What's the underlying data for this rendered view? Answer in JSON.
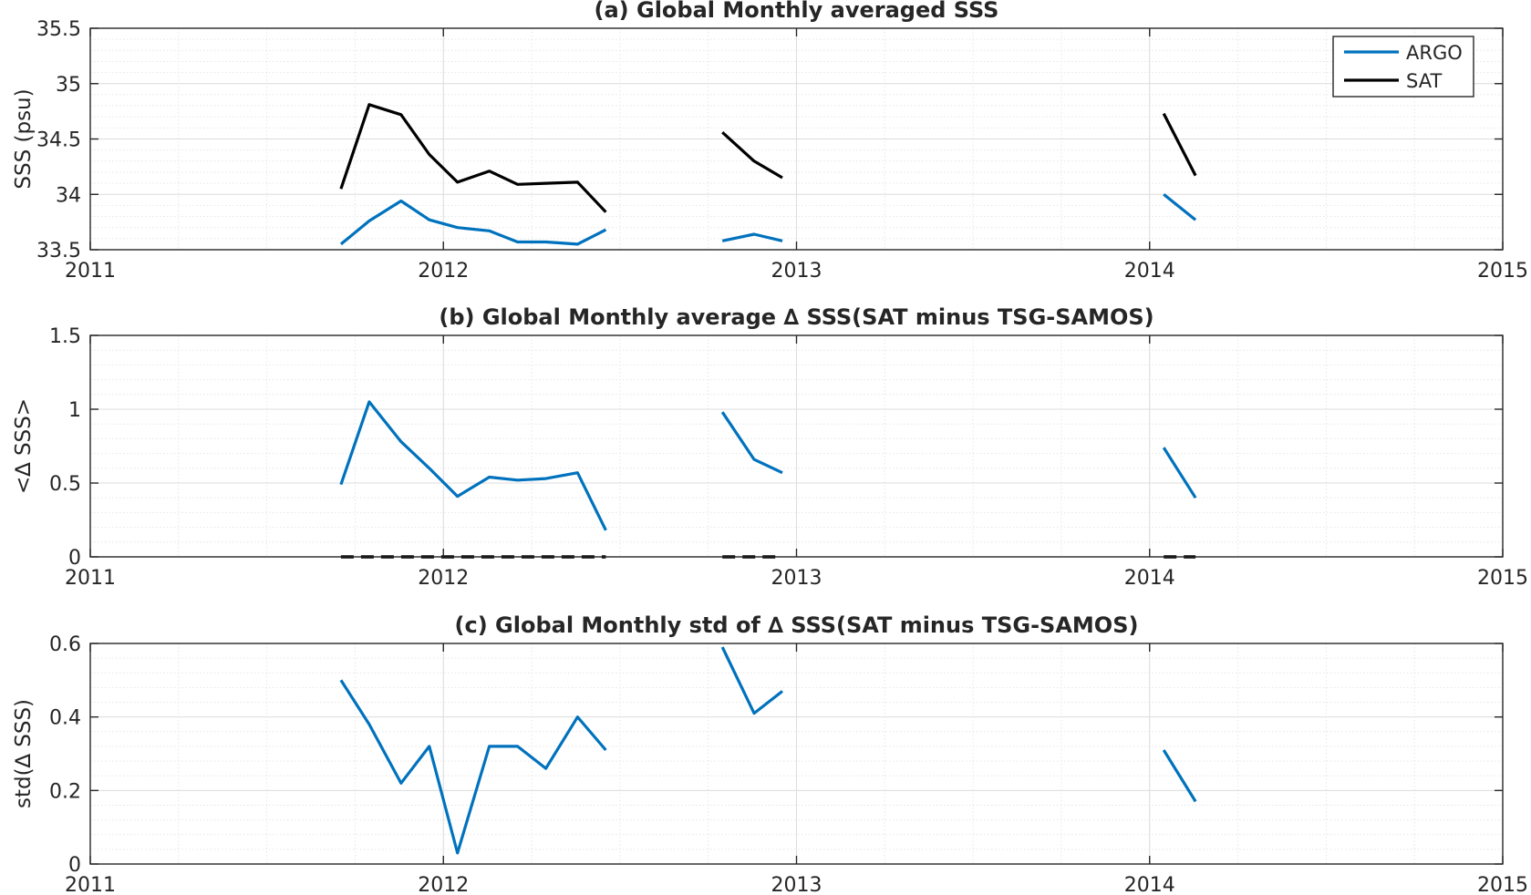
{
  "colors": {
    "argo": "#0072BD",
    "sat": "#000000",
    "grid_major": "#dcdcdc",
    "grid_minor": "#e6e6e6",
    "axes": "#262626"
  },
  "legend": {
    "items": [
      "ARGO",
      "SAT"
    ],
    "placement": "top-right"
  },
  "chart_data": [
    {
      "type": "line",
      "title": "(a) Global Monthly averaged SSS",
      "xlabel": "",
      "ylabel": "SSS (psu)",
      "xlim": [
        2011,
        2015
      ],
      "ylim": [
        33.5,
        35.5
      ],
      "xticks": [
        2011,
        2012,
        2013,
        2014,
        2015
      ],
      "xtick_labels": [
        "2011",
        "2012",
        "2013",
        "2014",
        "2015"
      ],
      "yticks": [
        33.5,
        34,
        34.5,
        35,
        35.5
      ],
      "ytick_labels": [
        "33.5",
        "34",
        "34.5",
        "35",
        "35.5"
      ],
      "grid": "major+minor",
      "legend": "top-right",
      "series": [
        {
          "name": "ARGO",
          "color": "#0072BD",
          "dashed": false,
          "segments": [
            {
              "x": [
                2011.71,
                2011.79,
                2011.88,
                2011.96,
                2012.04,
                2012.13,
                2012.21,
                2012.29,
                2012.38,
                2012.46
              ],
              "y": [
                33.55,
                33.76,
                33.94,
                33.77,
                33.7,
                33.67,
                33.57,
                33.57,
                33.55,
                33.68
              ]
            },
            {
              "x": [
                2012.79,
                2012.88,
                2012.96
              ],
              "y": [
                33.58,
                33.64,
                33.58
              ]
            },
            {
              "x": [
                2014.04,
                2014.13
              ],
              "y": [
                34.0,
                33.77
              ]
            }
          ]
        },
        {
          "name": "SAT",
          "color": "#000000",
          "dashed": false,
          "segments": [
            {
              "x": [
                2011.71,
                2011.79,
                2011.88,
                2011.96,
                2012.04,
                2012.13,
                2012.21,
                2012.29,
                2012.38,
                2012.46
              ],
              "y": [
                34.05,
                34.81,
                34.72,
                34.36,
                34.11,
                34.21,
                34.09,
                34.1,
                34.11,
                33.84
              ]
            },
            {
              "x": [
                2012.79,
                2012.88,
                2012.96
              ],
              "y": [
                34.56,
                34.3,
                34.15
              ]
            },
            {
              "x": [
                2014.04,
                2014.13
              ],
              "y": [
                34.73,
                34.17
              ]
            }
          ]
        }
      ]
    },
    {
      "type": "line",
      "title": "(b) Global Monthly average ∆ SSS(SAT minus TSG-SAMOS)",
      "xlabel": "",
      "ylabel": "<∆ SSS>",
      "xlim": [
        2011,
        2015
      ],
      "ylim": [
        0,
        1.5
      ],
      "xticks": [
        2011,
        2012,
        2013,
        2014,
        2015
      ],
      "xtick_labels": [
        "2011",
        "2012",
        "2013",
        "2014",
        "2015"
      ],
      "yticks": [
        0,
        0.5,
        1,
        1.5
      ],
      "ytick_labels": [
        "0",
        "0.5",
        "1",
        "1.5"
      ],
      "grid": "major+minor",
      "series": [
        {
          "name": "",
          "color": "#0072BD",
          "dashed": false,
          "segments": [
            {
              "x": [
                2011.71,
                2011.79,
                2011.88,
                2011.96,
                2012.04,
                2012.13,
                2012.21,
                2012.29,
                2012.38,
                2012.46
              ],
              "y": [
                0.49,
                1.05,
                0.78,
                0.6,
                0.41,
                0.54,
                0.52,
                0.53,
                0.57,
                0.18
              ]
            },
            {
              "x": [
                2012.79,
                2012.88,
                2012.96
              ],
              "y": [
                0.98,
                0.66,
                0.57
              ]
            },
            {
              "x": [
                2014.04,
                2014.13
              ],
              "y": [
                0.74,
                0.4
              ]
            }
          ]
        },
        {
          "name": "",
          "color": "#000000",
          "dashed": true,
          "segments": [
            {
              "x": [
                2011.71,
                2011.79,
                2011.88,
                2011.96,
                2012.04,
                2012.13,
                2012.21,
                2012.29,
                2012.38,
                2012.46
              ],
              "y": [
                0,
                0,
                0,
                0,
                0,
                0,
                0,
                0,
                0,
                0
              ]
            },
            {
              "x": [
                2012.79,
                2012.88,
                2012.96
              ],
              "y": [
                0,
                0,
                0
              ]
            },
            {
              "x": [
                2014.04,
                2014.13
              ],
              "y": [
                0,
                0
              ]
            }
          ]
        }
      ]
    },
    {
      "type": "line",
      "title": "(c) Global Monthly std of ∆ SSS(SAT minus TSG-SAMOS)",
      "xlabel": "",
      "ylabel": "std(∆ SSS)",
      "xlim": [
        2011,
        2015
      ],
      "ylim": [
        0,
        0.6
      ],
      "xticks": [
        2011,
        2012,
        2013,
        2014,
        2015
      ],
      "xtick_labels": [
        "2011",
        "2012",
        "2013",
        "2014",
        "2015"
      ],
      "yticks": [
        0,
        0.2,
        0.4,
        0.6
      ],
      "ytick_labels": [
        "0",
        "0.2",
        "0.4",
        "0.6"
      ],
      "grid": "major+minor",
      "series": [
        {
          "name": "",
          "color": "#0072BD",
          "dashed": false,
          "segments": [
            {
              "x": [
                2011.71,
                2011.79,
                2011.88,
                2011.96,
                2012.04,
                2012.13,
                2012.21,
                2012.29,
                2012.38,
                2012.46
              ],
              "y": [
                0.5,
                0.38,
                0.22,
                0.32,
                0.03,
                0.32,
                0.32,
                0.26,
                0.4,
                0.31
              ]
            },
            {
              "x": [
                2012.79,
                2012.88,
                2012.96
              ],
              "y": [
                0.59,
                0.41,
                0.47
              ]
            },
            {
              "x": [
                2014.04,
                2014.13
              ],
              "y": [
                0.31,
                0.17
              ]
            }
          ]
        }
      ]
    }
  ]
}
